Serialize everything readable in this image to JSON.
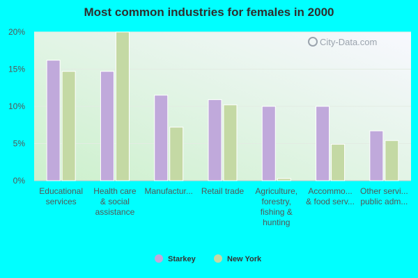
{
  "chart_data": {
    "type": "bar",
    "title": "Most common industries for females in 2000",
    "categories": [
      [
        "Educational",
        "services"
      ],
      [
        "Health care",
        "& social",
        "assistance"
      ],
      [
        "Manufactur..."
      ],
      [
        "Retail trade"
      ],
      [
        "Agriculture,",
        "forestry,",
        "fishing &",
        "hunting"
      ],
      [
        "Accommo...",
        "& food serv..."
      ],
      [
        "Other servi...",
        "public adm..."
      ]
    ],
    "series": [
      {
        "name": "Starkey",
        "color": "#c0a9db",
        "values": [
          16.2,
          14.7,
          11.5,
          10.9,
          10.0,
          10.0,
          6.7
        ]
      },
      {
        "name": "New York",
        "color": "#c4d9a4",
        "values": [
          14.7,
          20.0,
          7.2,
          10.2,
          0.3,
          4.9,
          5.4
        ]
      }
    ],
    "ylim": [
      0,
      20
    ],
    "yticks": [
      0,
      5,
      10,
      15,
      20
    ],
    "ytick_labels": [
      "0%",
      "5%",
      "10%",
      "15%",
      "20%"
    ],
    "xlabel": "",
    "ylabel": "",
    "legend": "bottom-center",
    "grid": true
  },
  "watermark": "City-Data.com"
}
